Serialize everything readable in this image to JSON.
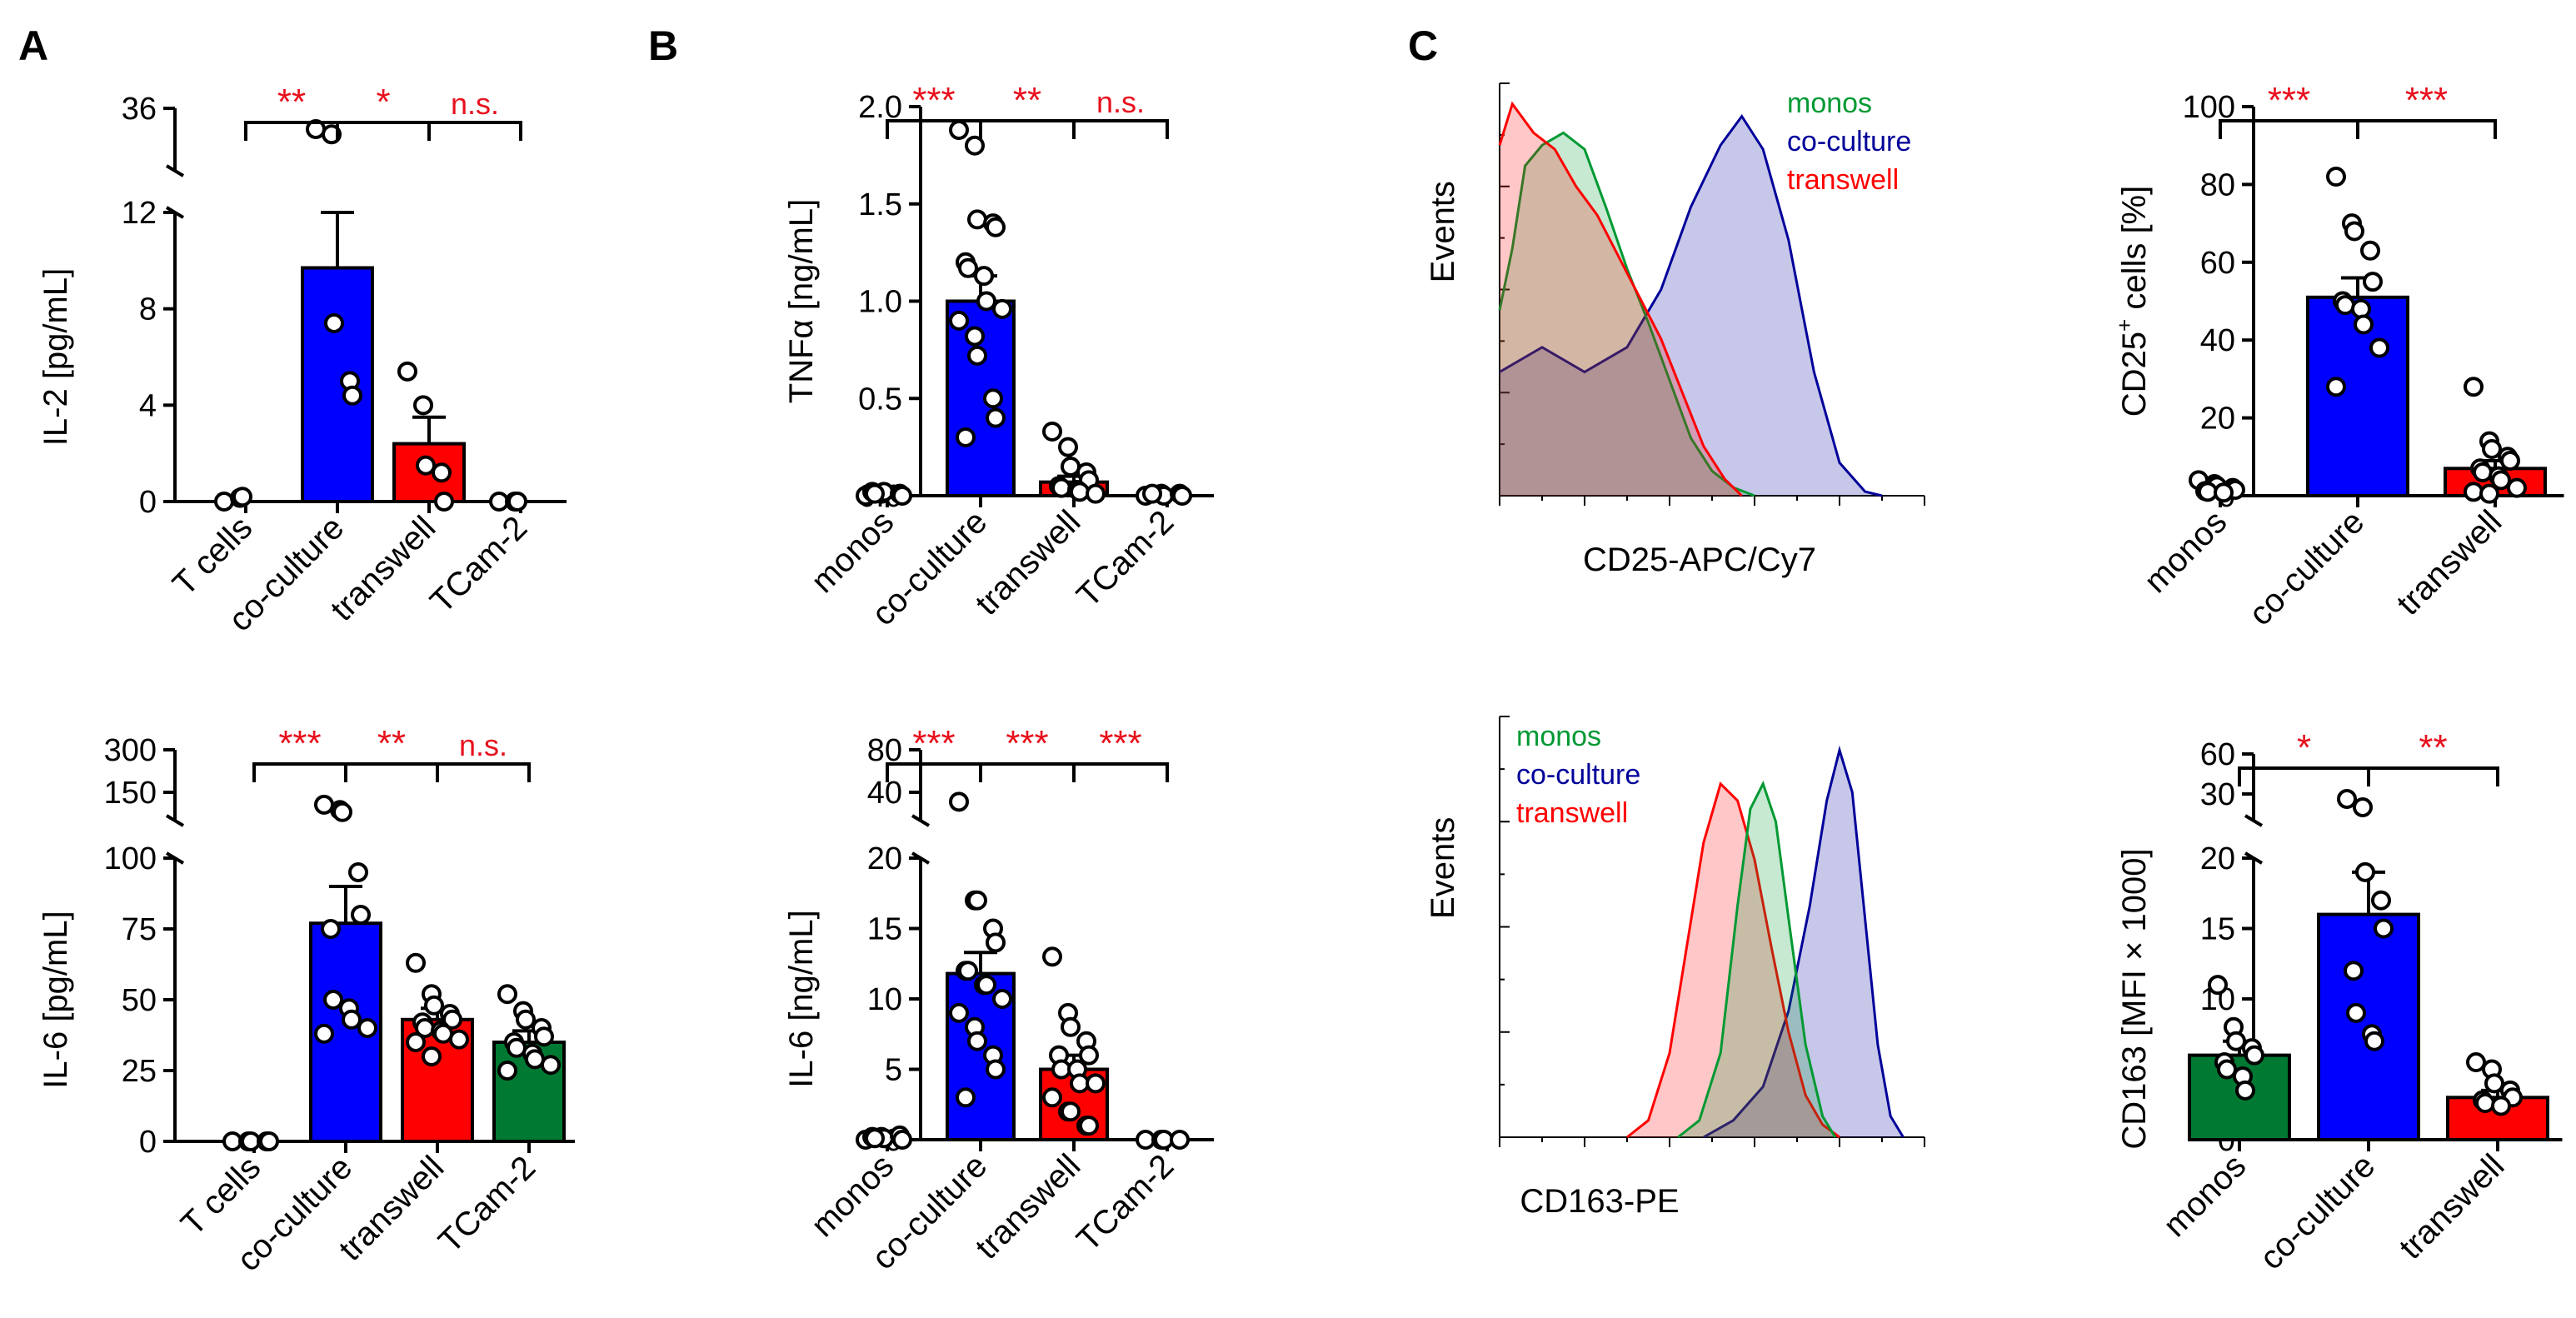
{
  "figure": {
    "panel_letters": [
      "A",
      "B",
      "C"
    ],
    "colors": {
      "blue": "#0000ff",
      "red": "#ff0000",
      "green": "#007a33",
      "dot_fill": "#ffffff",
      "axis": "#000000",
      "significance": "#e8101d",
      "hist_green": "#009933",
      "hist_blue": "#00009a",
      "hist_red": "#ff0000"
    }
  },
  "chart_data": [
    {
      "id": "A-top",
      "panel": "A",
      "type": "bar",
      "ylabel": "IL-2 [pg/mL]",
      "categories": [
        "T cells",
        "co-culture",
        "transwell",
        "TCam-2"
      ],
      "values": [
        0,
        9.7,
        2.4,
        0
      ],
      "errors": [
        0,
        2.3,
        1.1,
        0
      ],
      "bar_colors": [
        "none",
        "blue",
        "red",
        "none"
      ],
      "points": [
        [
          0,
          0.15,
          0.2
        ],
        [
          28,
          26,
          7.4,
          5,
          4.4
        ],
        [
          5.4,
          4,
          1.5,
          1.2,
          0
        ],
        [
          0,
          0,
          0
        ]
      ],
      "y_axis_break": {
        "lower_range": [
          0,
          12
        ],
        "upper_range": [
          12,
          36
        ],
        "lower_ticks": [
          0,
          4,
          8,
          12
        ],
        "upper_ticks": [
          36
        ]
      },
      "significance": [
        {
          "from": 0,
          "to": 1,
          "label": "**"
        },
        {
          "from": 1,
          "to": 2,
          "label": "*"
        },
        {
          "from": 2,
          "to": 3,
          "label": "n.s."
        }
      ]
    },
    {
      "id": "A-bottom",
      "panel": "A",
      "type": "bar",
      "ylabel": "IL-6 [pg/mL]",
      "categories": [
        "T cells",
        "co-culture",
        "transwell",
        "TCam-2"
      ],
      "values": [
        0,
        77,
        43,
        35
      ],
      "errors": [
        0,
        13,
        4,
        4
      ],
      "bar_colors": [
        "none",
        "blue",
        "red",
        "green"
      ],
      "points": [
        [
          0,
          0,
          0,
          0,
          0
        ],
        [
          145,
          130,
          124,
          95,
          80,
          75,
          50,
          47,
          43,
          40,
          38
        ],
        [
          63,
          52,
          48,
          45,
          43,
          42,
          40,
          39,
          38,
          36,
          35,
          30
        ],
        [
          52,
          46,
          43,
          40,
          37,
          35,
          33,
          31,
          29,
          27,
          25
        ]
      ],
      "y_axis_break": {
        "lower_range": [
          0,
          100
        ],
        "upper_range": [
          100,
          300
        ],
        "lower_ticks": [
          0,
          25,
          50,
          75,
          100
        ],
        "upper_ticks": [
          150,
          300
        ]
      },
      "significance": [
        {
          "from": 0,
          "to": 1,
          "label": "***"
        },
        {
          "from": 1,
          "to": 2,
          "label": "**"
        },
        {
          "from": 2,
          "to": 3,
          "label": "n.s."
        }
      ]
    },
    {
      "id": "B-top",
      "panel": "B",
      "type": "bar",
      "ylabel": "TNFα [ng/mL]",
      "categories": [
        "monos",
        "co-culture",
        "transwell",
        "TCam-2"
      ],
      "values": [
        0.01,
        1.0,
        0.07,
        0.01
      ],
      "errors": [
        0,
        0.13,
        0.03,
        0
      ],
      "bar_colors": [
        "none",
        "blue",
        "red",
        "none"
      ],
      "points": [
        [
          0,
          0.01,
          0.02,
          0.01,
          0,
          0.02,
          0.01
        ],
        [
          1.88,
          1.8,
          1.42,
          1.4,
          1.38,
          1.2,
          1.17,
          1.13,
          1.0,
          0.96,
          0.9,
          0.82,
          0.72,
          0.5,
          0.4,
          0.3
        ],
        [
          0.33,
          0.25,
          0.15,
          0.12,
          0.08,
          0.05,
          0.04,
          0.03,
          0.02,
          0.01
        ],
        [
          0,
          0.01,
          0,
          0.01,
          0,
          0.01
        ]
      ],
      "y_range": [
        0,
        2.0
      ],
      "y_ticks": [
        0,
        0.5,
        1.0,
        1.5,
        2.0
      ],
      "significance": [
        {
          "from": 0,
          "to": 1,
          "label": "***"
        },
        {
          "from": 1,
          "to": 2,
          "label": "**"
        },
        {
          "from": 2,
          "to": 3,
          "label": "n.s."
        }
      ]
    },
    {
      "id": "B-bottom",
      "panel": "B",
      "type": "bar",
      "ylabel": "IL-6 [ng/mL]",
      "categories": [
        "monos",
        "co-culture",
        "transwell",
        "TCam-2"
      ],
      "values": [
        0.1,
        11.8,
        5.0,
        0
      ],
      "errors": [
        0,
        1.5,
        1.0,
        0
      ],
      "bar_colors": [
        "none",
        "blue",
        "red",
        "none"
      ],
      "points": [
        [
          0,
          0.2,
          0.1,
          0.3,
          0,
          0.2,
          0.1
        ],
        [
          36,
          17,
          17,
          15,
          14,
          12,
          12,
          11,
          11,
          10,
          9,
          8,
          7,
          6,
          5,
          3
        ],
        [
          13,
          9,
          8,
          7,
          6,
          6,
          5,
          5,
          4,
          4,
          3,
          2,
          2,
          1,
          1
        ],
        [
          0,
          0,
          0,
          0
        ]
      ],
      "y_axis_break": {
        "lower_range": [
          0,
          20
        ],
        "upper_range": [
          20,
          80
        ],
        "lower_ticks": [
          0,
          5,
          10,
          15,
          20
        ],
        "upper_ticks": [
          40,
          80
        ]
      },
      "significance": [
        {
          "from": 0,
          "to": 1,
          "label": "***"
        },
        {
          "from": 1,
          "to": 2,
          "label": "***"
        },
        {
          "from": 2,
          "to": 3,
          "label": "***"
        }
      ]
    },
    {
      "id": "C-top-hist",
      "panel": "C",
      "type": "area",
      "xlabel": "CD25-APC/Cy7",
      "ylabel": "Events",
      "legend": [
        "monos",
        "co-culture",
        "transwell"
      ],
      "legend_position": "top-right",
      "series": [
        {
          "name": "monos",
          "color": "hist_green",
          "curve": [
            [
              0,
              0.45
            ],
            [
              0.03,
              0.6
            ],
            [
              0.06,
              0.8
            ],
            [
              0.1,
              0.85
            ],
            [
              0.15,
              0.88
            ],
            [
              0.2,
              0.84
            ],
            [
              0.25,
              0.7
            ],
            [
              0.3,
              0.55
            ],
            [
              0.35,
              0.42
            ],
            [
              0.4,
              0.28
            ],
            [
              0.45,
              0.14
            ],
            [
              0.5,
              0.06
            ],
            [
              0.55,
              0.02
            ],
            [
              0.6,
              0
            ]
          ]
        },
        {
          "name": "co-culture",
          "color": "hist_blue",
          "curve": [
            [
              0,
              0.3
            ],
            [
              0.1,
              0.36
            ],
            [
              0.2,
              0.3
            ],
            [
              0.3,
              0.36
            ],
            [
              0.38,
              0.5
            ],
            [
              0.45,
              0.7
            ],
            [
              0.52,
              0.85
            ],
            [
              0.57,
              0.92
            ],
            [
              0.62,
              0.84
            ],
            [
              0.68,
              0.62
            ],
            [
              0.74,
              0.3
            ],
            [
              0.8,
              0.08
            ],
            [
              0.86,
              0.01
            ],
            [
              0.9,
              0
            ]
          ]
        },
        {
          "name": "transwell",
          "color": "hist_red",
          "curve": [
            [
              0,
              0.85
            ],
            [
              0.03,
              0.95
            ],
            [
              0.08,
              0.88
            ],
            [
              0.13,
              0.84
            ],
            [
              0.18,
              0.75
            ],
            [
              0.23,
              0.68
            ],
            [
              0.28,
              0.58
            ],
            [
              0.33,
              0.48
            ],
            [
              0.38,
              0.38
            ],
            [
              0.43,
              0.25
            ],
            [
              0.48,
              0.12
            ],
            [
              0.53,
              0.04
            ],
            [
              0.57,
              0
            ]
          ]
        }
      ]
    },
    {
      "id": "C-top-bar",
      "panel": "C",
      "type": "bar",
      "ylabel": "CD25+ cells [%]",
      "ylabel_parts": [
        "CD25",
        "+",
        " cells [%]"
      ],
      "categories": [
        "monos",
        "co-culture",
        "transwell"
      ],
      "values": [
        2,
        51,
        7
      ],
      "errors": [
        0.5,
        5,
        2
      ],
      "bar_colors": [
        "none",
        "blue",
        "red"
      ],
      "points": [
        [
          4,
          3,
          2.5,
          2,
          1.5,
          1.2,
          1,
          0.8
        ],
        [
          82,
          70,
          68,
          63,
          55,
          50,
          49,
          48,
          44,
          38,
          28
        ],
        [
          28,
          14,
          12,
          10,
          9,
          7,
          6,
          5,
          4,
          2,
          1,
          0.5
        ]
      ],
      "y_range": [
        0,
        100
      ],
      "y_ticks": [
        0,
        20,
        40,
        60,
        80,
        100
      ],
      "significance": [
        {
          "from": 0,
          "to": 1,
          "label": "***"
        },
        {
          "from": 1,
          "to": 2,
          "label": "***"
        }
      ]
    },
    {
      "id": "C-bottom-hist",
      "panel": "C",
      "type": "area",
      "xlabel": "CD163-PE",
      "ylabel": "Events",
      "legend": [
        "monos",
        "co-culture",
        "transwell"
      ],
      "legend_position": "top-left",
      "series": [
        {
          "name": "transwell",
          "color": "hist_red",
          "curve": [
            [
              0.3,
              0
            ],
            [
              0.35,
              0.04
            ],
            [
              0.4,
              0.2
            ],
            [
              0.44,
              0.45
            ],
            [
              0.48,
              0.7
            ],
            [
              0.52,
              0.84
            ],
            [
              0.56,
              0.8
            ],
            [
              0.6,
              0.66
            ],
            [
              0.64,
              0.45
            ],
            [
              0.68,
              0.25
            ],
            [
              0.72,
              0.1
            ],
            [
              0.76,
              0.03
            ],
            [
              0.8,
              0
            ]
          ]
        },
        {
          "name": "monos",
          "color": "hist_green",
          "curve": [
            [
              0.42,
              0
            ],
            [
              0.47,
              0.04
            ],
            [
              0.52,
              0.2
            ],
            [
              0.56,
              0.55
            ],
            [
              0.59,
              0.78
            ],
            [
              0.62,
              0.84
            ],
            [
              0.65,
              0.75
            ],
            [
              0.68,
              0.52
            ],
            [
              0.72,
              0.22
            ],
            [
              0.76,
              0.05
            ],
            [
              0.79,
              0
            ]
          ]
        },
        {
          "name": "co-culture",
          "color": "hist_blue",
          "curve": [
            [
              0.48,
              0
            ],
            [
              0.55,
              0.04
            ],
            [
              0.62,
              0.12
            ],
            [
              0.68,
              0.3
            ],
            [
              0.73,
              0.55
            ],
            [
              0.77,
              0.8
            ],
            [
              0.8,
              0.92
            ],
            [
              0.83,
              0.82
            ],
            [
              0.86,
              0.52
            ],
            [
              0.89,
              0.22
            ],
            [
              0.92,
              0.05
            ],
            [
              0.95,
              0
            ]
          ]
        }
      ]
    },
    {
      "id": "C-bottom-bar",
      "panel": "C",
      "type": "bar",
      "ylabel": "CD163 [MFI × 1000]",
      "categories": [
        "monos",
        "co-culture",
        "transwell"
      ],
      "values": [
        6,
        16,
        3
      ],
      "errors": [
        1,
        3,
        0.5
      ],
      "bar_colors": [
        "green",
        "blue",
        "red"
      ],
      "points": [
        [
          11,
          8,
          7,
          6.5,
          6,
          5.5,
          5,
          4.5,
          3.5
        ],
        [
          33,
          28,
          19,
          17,
          15,
          12,
          9,
          7.5,
          7
        ],
        [
          5.5,
          5,
          4,
          3.5,
          3,
          2.8,
          2.6,
          2.4
        ]
      ],
      "y_axis_break": {
        "lower_range": [
          0,
          20
        ],
        "upper_range": [
          20,
          60
        ],
        "lower_ticks": [
          0,
          5,
          10,
          15,
          20
        ],
        "upper_ticks": [
          30,
          60
        ]
      },
      "significance": [
        {
          "from": 0,
          "to": 1,
          "label": "*"
        },
        {
          "from": 1,
          "to": 2,
          "label": "**"
        }
      ]
    }
  ]
}
